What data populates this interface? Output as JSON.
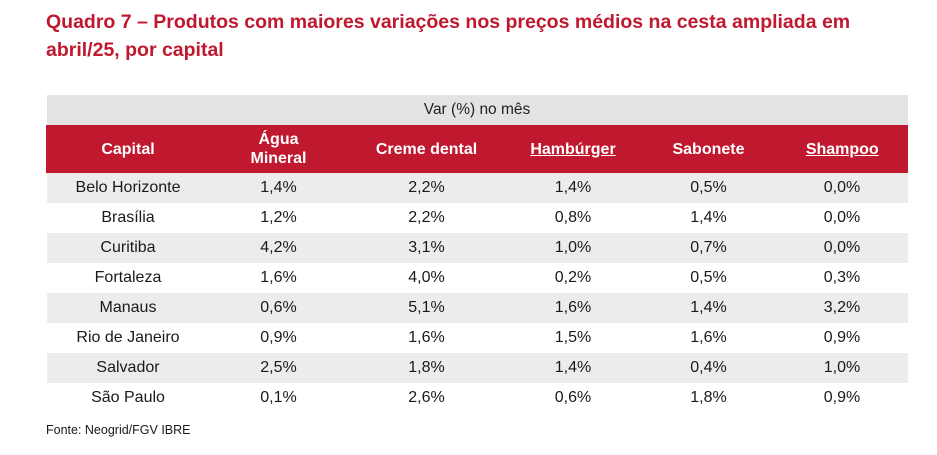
{
  "title": "Quadro 7 – Produtos com maiores variações nos preços médios na cesta ampliada em abril/25, por capital",
  "table": {
    "group_header": "Var (%) no mês",
    "columns": [
      "Capital",
      "Água Mineral",
      "Creme dental",
      "Hambúrger",
      "Sabonete",
      "Shampoo"
    ],
    "rows": [
      [
        "Belo Horizonte",
        "1,4%",
        "2,2%",
        "1,4%",
        "0,5%",
        "0,0%"
      ],
      [
        "Brasília",
        "1,2%",
        "2,2%",
        "0,8%",
        "1,4%",
        "0,0%"
      ],
      [
        "Curitiba",
        "4,2%",
        "3,1%",
        "1,0%",
        "0,7%",
        "0,0%"
      ],
      [
        "Fortaleza",
        "1,6%",
        "4,0%",
        "0,2%",
        "0,5%",
        "0,3%"
      ],
      [
        "Manaus",
        "0,6%",
        "5,1%",
        "1,6%",
        "1,4%",
        "3,2%"
      ],
      [
        "Rio de Janeiro",
        "0,9%",
        "1,6%",
        "1,5%",
        "1,6%",
        "0,9%"
      ],
      [
        "Salvador",
        "2,5%",
        "1,8%",
        "1,4%",
        "0,4%",
        "1,0%"
      ],
      [
        "São Paulo",
        "0,1%",
        "2,6%",
        "0,6%",
        "1,8%",
        "0,9%"
      ]
    ]
  },
  "source": "Fonte: Neogrid/FGV IBRE",
  "colors": {
    "accent": "#c0182e",
    "header_band": "#e3e3e3",
    "row_shade": "#ececec"
  }
}
